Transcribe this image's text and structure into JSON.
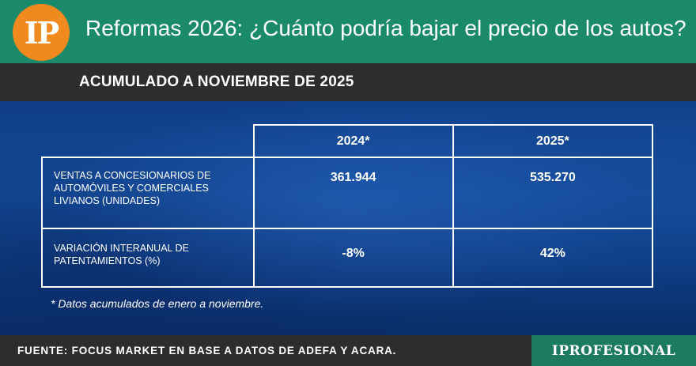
{
  "header": {
    "logo_text": "IP",
    "headline": "Reformas 2026: ¿Cuánto podría bajar el precio de los autos?"
  },
  "subheader": {
    "title": "ACUMULADO A NOVIEMBRE DE 2025"
  },
  "table": {
    "columns": [
      "2024*",
      "2025*"
    ],
    "rows": [
      {
        "label": "VENTAS A CONCESIONARIOS DE AUTOMÓVILES Y COMERCIALES LIVIANOS (UNIDADES)",
        "values": [
          "361.944",
          "535.270"
        ]
      },
      {
        "label": "VARIACIÓN INTERANUAL DE PATENTAMIENTOS (%)",
        "values": [
          "-8%",
          "42%"
        ]
      }
    ]
  },
  "footnote": "* Datos acumulados de enero a noviembre.",
  "footer": {
    "source": "FUENTE: FOCUS MARKET EN BASE A DATOS DE ADEFA Y ACARA.",
    "brand": "IPROFESIONAL"
  },
  "colors": {
    "header_green": "#1b8a6b",
    "logo_orange": "#f08a1f",
    "dark_bar": "#2b2d2f",
    "body_blue": "#134a98"
  }
}
